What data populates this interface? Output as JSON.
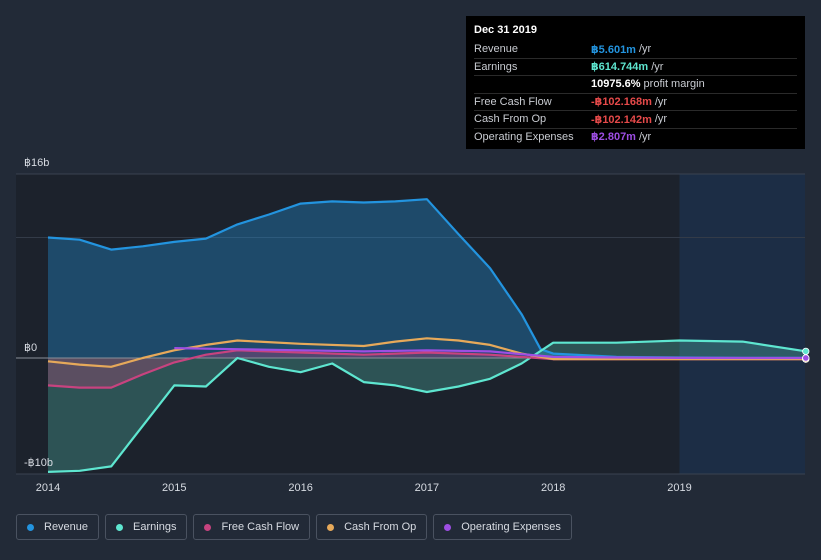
{
  "tooltip": {
    "date": "Dec 31 2019",
    "rows": [
      {
        "label": "Revenue",
        "value": "฿5.601m",
        "unit": "/yr",
        "color": "#2394df"
      },
      {
        "label": "Earnings",
        "value": "฿614.744m",
        "unit": "/yr",
        "color": "#5ee6d0"
      },
      {
        "label": "",
        "value": "10975.6%",
        "unit": "profit margin",
        "color": "#ffffff"
      },
      {
        "label": "Free Cash Flow",
        "value": "-฿102.168m",
        "unit": "/yr",
        "color": "#e64a4a"
      },
      {
        "label": "Cash From Op",
        "value": "-฿102.142m",
        "unit": "/yr",
        "color": "#e64a4a"
      },
      {
        "label": "Operating Expenses",
        "value": "฿2.807m",
        "unit": "/yr",
        "color": "#9d4ee3"
      }
    ]
  },
  "legend": [
    {
      "label": "Revenue",
      "color": "#2394df"
    },
    {
      "label": "Earnings",
      "color": "#5ee6d0"
    },
    {
      "label": "Free Cash Flow",
      "color": "#c7437f"
    },
    {
      "label": "Cash From Op",
      "color": "#e6a95a"
    },
    {
      "label": "Operating Expenses",
      "color": "#9d4ee3"
    }
  ],
  "chart_data": {
    "type": "area",
    "y_tick_labels": [
      "฿16b",
      "฿0",
      "-฿10b"
    ],
    "ylim": [
      -11,
      16.8
    ],
    "xlim": [
      2013.9,
      2020.0
    ],
    "x_ticks": [
      2014,
      2015,
      2016,
      2017,
      2018,
      2019
    ],
    "forecast_shade_start": 2019.0,
    "series": [
      {
        "name": "Revenue",
        "color": "#2394df",
        "fill": true,
        "x": [
          2014.0,
          2014.25,
          2014.5,
          2014.75,
          2015.0,
          2015.25,
          2015.5,
          2015.75,
          2016.0,
          2016.25,
          2016.5,
          2016.75,
          2017.0,
          2017.25,
          2017.5,
          2017.75,
          2017.9,
          2018.0,
          2018.5,
          2019.0,
          2019.5,
          2020.0
        ],
        "y": [
          11.0,
          10.8,
          9.9,
          10.2,
          10.6,
          10.9,
          12.2,
          13.1,
          14.1,
          14.3,
          14.2,
          14.3,
          14.5,
          11.3,
          8.2,
          4.0,
          0.8,
          0.4,
          0.1,
          0.05,
          0.02,
          0.01
        ]
      },
      {
        "name": "Earnings",
        "color": "#5ee6d0",
        "fill": true,
        "x": [
          2014.0,
          2014.25,
          2014.5,
          2014.75,
          2015.0,
          2015.25,
          2015.5,
          2015.75,
          2016.0,
          2016.25,
          2016.5,
          2016.75,
          2017.0,
          2017.25,
          2017.5,
          2017.75,
          2018.0,
          2018.5,
          2019.0,
          2019.5,
          2020.0
        ],
        "y": [
          -10.4,
          -10.3,
          -9.9,
          -6.2,
          -2.5,
          -2.6,
          0.0,
          -0.8,
          -1.3,
          -0.5,
          -2.2,
          -2.5,
          -3.1,
          -2.6,
          -1.9,
          -0.5,
          1.4,
          1.4,
          1.6,
          1.5,
          0.61
        ]
      },
      {
        "name": "Free Cash Flow",
        "color": "#c7437f",
        "fill": true,
        "x": [
          2014.0,
          2014.25,
          2014.5,
          2014.75,
          2015.0,
          2015.25,
          2015.5,
          2016.0,
          2016.5,
          2017.0,
          2017.5,
          2018.0,
          2018.5,
          2019.0,
          2020.0
        ],
        "y": [
          -2.5,
          -2.7,
          -2.7,
          -1.5,
          -0.4,
          0.3,
          0.7,
          0.5,
          0.3,
          0.5,
          0.3,
          -0.1,
          -0.1,
          -0.1,
          -0.1
        ]
      },
      {
        "name": "Cash From Op",
        "color": "#e6a95a",
        "fill": false,
        "x": [
          2014.0,
          2014.25,
          2014.5,
          2014.75,
          2015.0,
          2015.25,
          2015.5,
          2016.0,
          2016.5,
          2016.75,
          2017.0,
          2017.25,
          2017.5,
          2017.75,
          2018.0,
          2018.5,
          2019.0,
          2020.0
        ],
        "y": [
          -0.3,
          -0.6,
          -0.8,
          0.0,
          0.7,
          1.2,
          1.6,
          1.3,
          1.1,
          1.5,
          1.8,
          1.6,
          1.2,
          0.4,
          -0.1,
          -0.1,
          -0.1,
          -0.1
        ]
      },
      {
        "name": "Operating Expenses",
        "color": "#9d4ee3",
        "fill": false,
        "x": [
          2015.0,
          2015.5,
          2016.0,
          2016.5,
          2017.0,
          2017.5,
          2018.0,
          2018.5,
          2019.0,
          2020.0
        ],
        "y": [
          0.9,
          0.8,
          0.7,
          0.6,
          0.7,
          0.6,
          0.1,
          0.05,
          0.01,
          0.003
        ]
      }
    ]
  }
}
